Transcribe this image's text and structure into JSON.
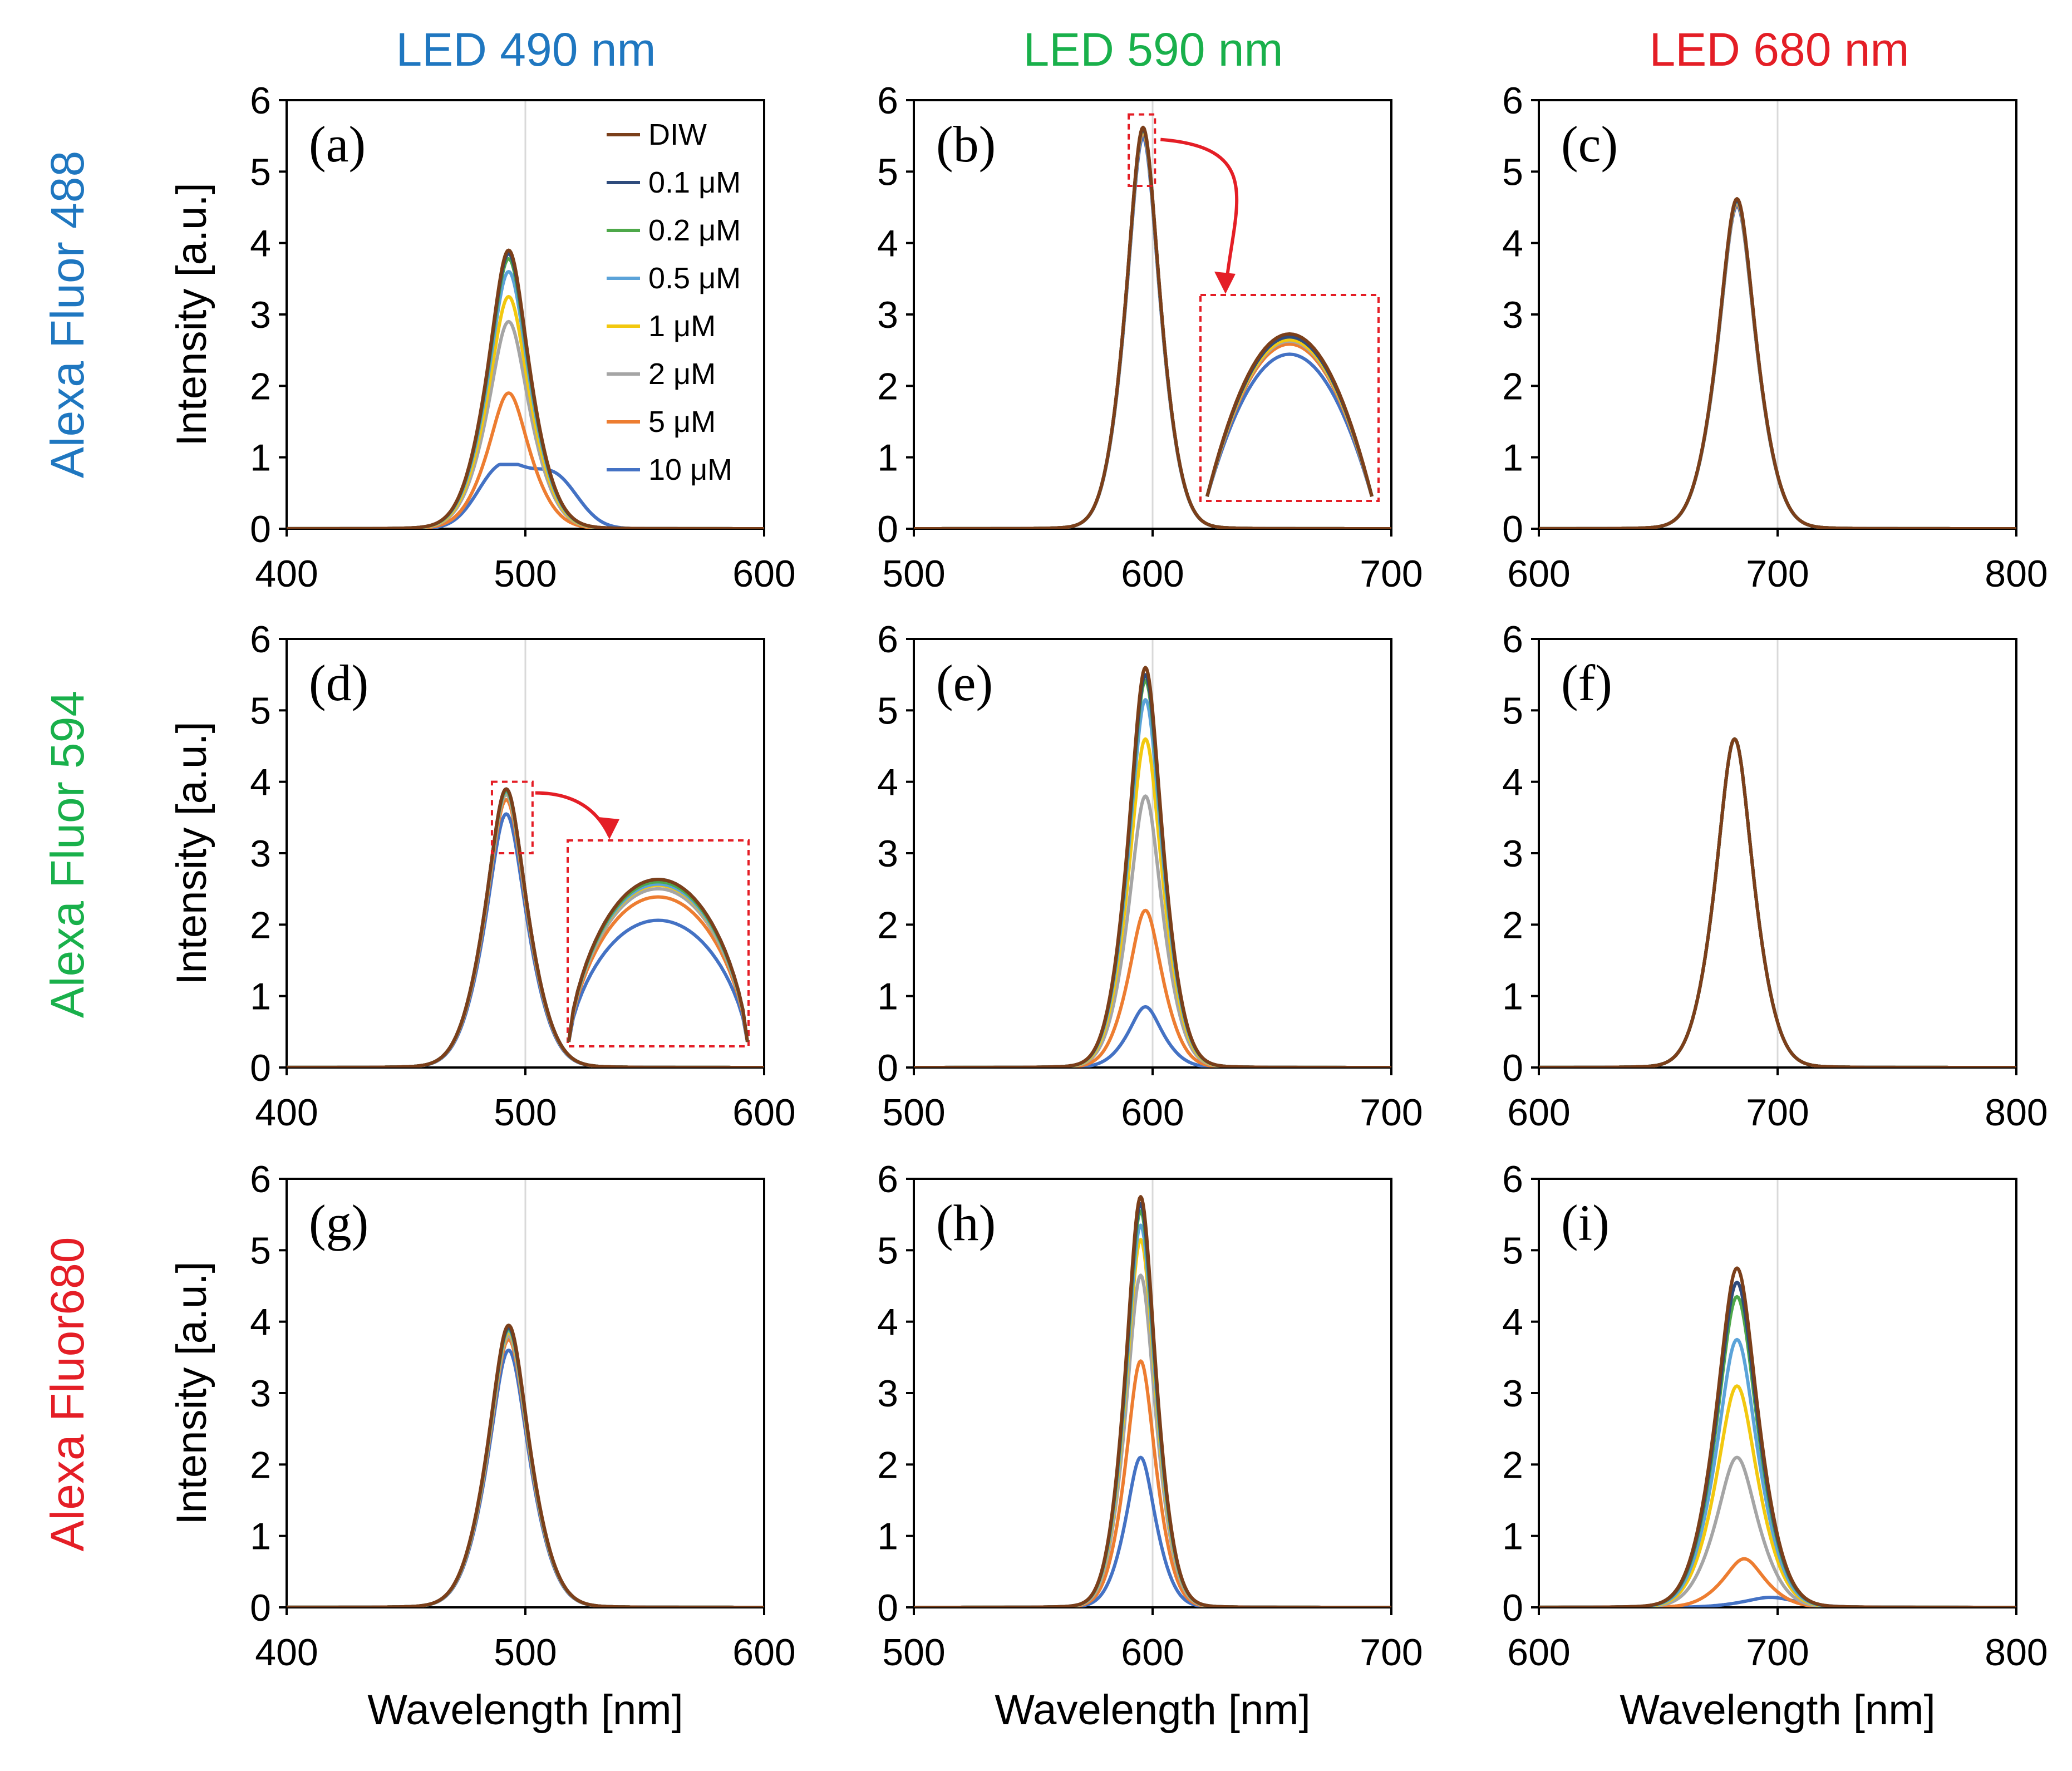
{
  "figure": {
    "column_titles": [
      {
        "text": "LED 490 nm",
        "color": "#1f77c0"
      },
      {
        "text": "LED 590 nm",
        "color": "#19b04b"
      },
      {
        "text": "LED 680 nm",
        "color": "#e41e26"
      }
    ],
    "row_titles": [
      {
        "prefix": "Alexa Fluor ",
        "prefix_color": "#1f77c0",
        "number": "488",
        "number_color": "#1f77c0"
      },
      {
        "prefix": "Alexa Fluor ",
        "prefix_color": "#19b04b",
        "number": "594",
        "number_color": "#19b04b"
      },
      {
        "prefix": "Alexa ",
        "prefix_color": "#e41e26",
        "middle": "Fluor",
        "middle_color": "#e41e26",
        "number": "680",
        "number_color": "#e41e26"
      }
    ],
    "ylabel": "Intensity [a.u.]",
    "xlabel": "Wavelength [nm]"
  },
  "legend": {
    "entries": [
      {
        "name": "DIW",
        "color": "#7b3f1a"
      },
      {
        "name": "0.1 μM",
        "color": "#2e4b7c"
      },
      {
        "name": "0.2 μM",
        "color": "#4ea84a"
      },
      {
        "name": "0.5 μM",
        "color": "#5ba3d9"
      },
      {
        "name": "1 μM",
        "color": "#f2c80f"
      },
      {
        "name": "2 μM",
        "color": "#a5a5a5"
      },
      {
        "name": "5 μM",
        "color": "#ed7d31"
      },
      {
        "name": "10 μM",
        "color": "#4472c4"
      }
    ]
  },
  "chart_data": [
    {
      "id": "a",
      "label": "(a)",
      "type": "line",
      "xlim": [
        400,
        600
      ],
      "ylim": [
        0,
        6
      ],
      "xticks": [
        400,
        500,
        600
      ],
      "yticks": [
        0,
        1,
        2,
        3,
        4,
        5,
        6
      ],
      "peak_nm": 493,
      "width_nm": 11,
      "series": [
        {
          "name": "DIW",
          "peak": 3.9
        },
        {
          "name": "0.1 μM",
          "peak": 3.85
        },
        {
          "name": "0.2 μM",
          "peak": 3.78
        },
        {
          "name": "0.5 μM",
          "peak": 3.6
        },
        {
          "name": "1 μM",
          "peak": 3.25
        },
        {
          "name": "2 μM",
          "peak": 2.9
        },
        {
          "name": "5 μM",
          "peak": 1.9
        },
        {
          "name": "10 μM",
          "peak": 0.88
        }
      ]
    },
    {
      "id": "b",
      "label": "(b)",
      "type": "line",
      "xlim": [
        500,
        700
      ],
      "ylim": [
        0,
        6
      ],
      "xticks": [
        500,
        600,
        700
      ],
      "yticks": [
        0,
        1,
        2,
        3,
        4,
        5,
        6
      ],
      "peak_nm": 596,
      "width_nm": 9,
      "inset": true,
      "series": [
        {
          "name": "DIW",
          "peak": 5.62
        },
        {
          "name": "0.1 μM",
          "peak": 5.6
        },
        {
          "name": "0.2 μM",
          "peak": 5.6
        },
        {
          "name": "0.5 μM",
          "peak": 5.6
        },
        {
          "name": "1 μM",
          "peak": 5.58
        },
        {
          "name": "2 μM",
          "peak": 5.57
        },
        {
          "name": "5 μM",
          "peak": 5.55
        },
        {
          "name": "10 μM",
          "peak": 5.48
        }
      ]
    },
    {
      "id": "c",
      "label": "(c)",
      "type": "line",
      "xlim": [
        600,
        800
      ],
      "ylim": [
        0,
        6
      ],
      "xticks": [
        600,
        700,
        800
      ],
      "yticks": [
        0,
        1,
        2,
        3,
        4,
        5,
        6
      ],
      "peak_nm": 683,
      "width_nm": 10,
      "series": [
        {
          "name": "DIW",
          "peak": 4.62
        },
        {
          "name": "0.1 μM",
          "peak": 4.6
        },
        {
          "name": "0.2 μM",
          "peak": 4.6
        },
        {
          "name": "0.5 μM",
          "peak": 4.59
        },
        {
          "name": "1 μM",
          "peak": 4.58
        },
        {
          "name": "2 μM",
          "peak": 4.57
        },
        {
          "name": "5 μM",
          "peak": 4.55
        },
        {
          "name": "10 μM",
          "peak": 4.52
        }
      ]
    },
    {
      "id": "d",
      "label": "(d)",
      "type": "line",
      "xlim": [
        400,
        600
      ],
      "ylim": [
        0,
        6
      ],
      "xticks": [
        400,
        500,
        600
      ],
      "yticks": [
        0,
        1,
        2,
        3,
        4,
        5,
        6
      ],
      "peak_nm": 492,
      "width_nm": 11,
      "inset": true,
      "series": [
        {
          "name": "DIW",
          "peak": 3.9
        },
        {
          "name": "0.1 μM",
          "peak": 3.9
        },
        {
          "name": "0.2 μM",
          "peak": 3.88
        },
        {
          "name": "0.5 μM",
          "peak": 3.86
        },
        {
          "name": "1 μM",
          "peak": 3.85
        },
        {
          "name": "2 μM",
          "peak": 3.82
        },
        {
          "name": "5 μM",
          "peak": 3.75
        },
        {
          "name": "10 μM",
          "peak": 3.55
        }
      ]
    },
    {
      "id": "e",
      "label": "(e)",
      "type": "line",
      "xlim": [
        500,
        700
      ],
      "ylim": [
        0,
        6
      ],
      "xticks": [
        500,
        600,
        700
      ],
      "yticks": [
        0,
        1,
        2,
        3,
        4,
        5,
        6
      ],
      "peak_nm": 597,
      "width_nm": 9,
      "series": [
        {
          "name": "DIW",
          "peak": 5.6
        },
        {
          "name": "0.1 μM",
          "peak": 5.5
        },
        {
          "name": "0.2 μM",
          "peak": 5.42
        },
        {
          "name": "0.5 μM",
          "peak": 5.15
        },
        {
          "name": "1 μM",
          "peak": 4.6
        },
        {
          "name": "2 μM",
          "peak": 3.8
        },
        {
          "name": "5 μM",
          "peak": 2.2
        },
        {
          "name": "10 μM",
          "peak": 0.85
        }
      ]
    },
    {
      "id": "f",
      "label": "(f)",
      "type": "line",
      "xlim": [
        600,
        800
      ],
      "ylim": [
        0,
        6
      ],
      "xticks": [
        600,
        700,
        800
      ],
      "yticks": [
        0,
        1,
        2,
        3,
        4,
        5,
        6
      ],
      "peak_nm": 682,
      "width_nm": 10,
      "series": [
        {
          "name": "DIW",
          "peak": 4.6
        },
        {
          "name": "0.1 μM",
          "peak": 4.6
        },
        {
          "name": "0.2 μM",
          "peak": 4.6
        },
        {
          "name": "0.5 μM",
          "peak": 4.6
        },
        {
          "name": "1 μM",
          "peak": 4.6
        },
        {
          "name": "2 μM",
          "peak": 4.6
        },
        {
          "name": "5 μM",
          "peak": 4.6
        },
        {
          "name": "10 μM",
          "peak": 4.6
        }
      ]
    },
    {
      "id": "g",
      "label": "(g)",
      "type": "line",
      "xlim": [
        400,
        600
      ],
      "ylim": [
        0,
        6
      ],
      "xticks": [
        400,
        500,
        600
      ],
      "yticks": [
        0,
        1,
        2,
        3,
        4,
        5,
        6
      ],
      "peak_nm": 493,
      "width_nm": 11,
      "series": [
        {
          "name": "DIW",
          "peak": 3.95
        },
        {
          "name": "0.1 μM",
          "peak": 3.92
        },
        {
          "name": "0.2 μM",
          "peak": 3.9
        },
        {
          "name": "0.5 μM",
          "peak": 3.88
        },
        {
          "name": "1 μM",
          "peak": 3.85
        },
        {
          "name": "2 μM",
          "peak": 3.8
        },
        {
          "name": "5 μM",
          "peak": 3.75
        },
        {
          "name": "10 μM",
          "peak": 3.6
        }
      ]
    },
    {
      "id": "h",
      "label": "(h)",
      "type": "line",
      "xlim": [
        500,
        700
      ],
      "ylim": [
        0,
        6
      ],
      "xticks": [
        500,
        600,
        700
      ],
      "yticks": [
        0,
        1,
        2,
        3,
        4,
        5,
        6
      ],
      "peak_nm": 595,
      "width_nm": 8,
      "series": [
        {
          "name": "DIW",
          "peak": 5.75
        },
        {
          "name": "0.1 μM",
          "peak": 5.65
        },
        {
          "name": "0.2 μM",
          "peak": 5.55
        },
        {
          "name": "0.5 μM",
          "peak": 5.35
        },
        {
          "name": "1 μM",
          "peak": 5.15
        },
        {
          "name": "2 μM",
          "peak": 4.65
        },
        {
          "name": "5 μM",
          "peak": 3.45
        },
        {
          "name": "10 μM",
          "peak": 2.1
        }
      ]
    },
    {
      "id": "i",
      "label": "(i)",
      "type": "line",
      "xlim": [
        600,
        800
      ],
      "ylim": [
        0,
        6
      ],
      "xticks": [
        600,
        700,
        800
      ],
      "yticks": [
        0,
        1,
        2,
        3,
        4,
        5,
        6
      ],
      "peak_nm": 683,
      "width_nm": 11,
      "series": [
        {
          "name": "DIW",
          "peak": 4.75
        },
        {
          "name": "0.1 μM",
          "peak": 4.55
        },
        {
          "name": "0.2 μM",
          "peak": 4.35
        },
        {
          "name": "0.5 μM",
          "peak": 3.75
        },
        {
          "name": "1 μM",
          "peak": 3.1
        },
        {
          "name": "2 μM",
          "peak": 2.1
        },
        {
          "name": "5 μM",
          "peak": 0.68,
          "peak_nm": 686
        },
        {
          "name": "10 μM",
          "peak": 0.14,
          "peak_nm": 697,
          "width_nm": 14
        }
      ]
    }
  ]
}
